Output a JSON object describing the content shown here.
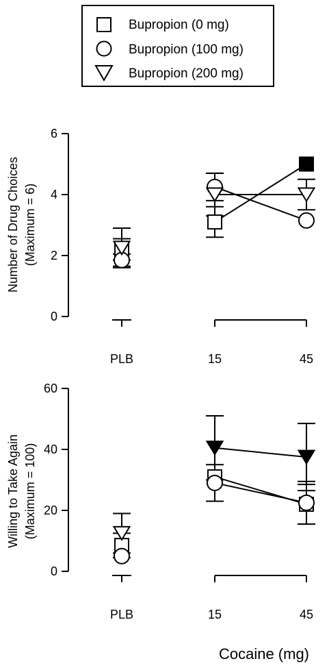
{
  "legend": {
    "entries": [
      {
        "label": "Bupropion (0 mg)",
        "marker": "square"
      },
      {
        "label": "Bupropion (100 mg)",
        "marker": "circle"
      },
      {
        "label": "Bupropion (200 mg)",
        "marker": "triangle-down"
      }
    ]
  },
  "xlabel": "Cocaine (mg)",
  "chart_data": [
    {
      "type": "scatter",
      "ylabel": "Number of Drug Choices",
      "ylabel_sub": "(Maximum = 6)",
      "ylim": [
        0,
        6
      ],
      "yticks": [
        0,
        2,
        4,
        6
      ],
      "categories": [
        "PLB",
        "15",
        "45"
      ],
      "series": [
        {
          "name": "Bupropion (0 mg)",
          "marker": "square",
          "values": [
            2.2,
            3.1,
            5.0
          ],
          "errors": [
            0.35,
            0.5,
            0.0
          ],
          "filled": [
            false,
            false,
            true
          ],
          "connect": [
            1,
            2
          ]
        },
        {
          "name": "Bupropion (100 mg)",
          "marker": "circle",
          "values": [
            1.85,
            4.25,
            3.15
          ],
          "errors": [
            0.2,
            0.45,
            0.0
          ],
          "filled": [
            false,
            false,
            false
          ],
          "connect": [
            1,
            2
          ]
        },
        {
          "name": "Bupropion (200 mg)",
          "marker": "triangle-down",
          "values": [
            2.25,
            4.0,
            4.0
          ],
          "errors": [
            0.65,
            0.7,
            0.5
          ],
          "filled": [
            false,
            false,
            false
          ],
          "connect": [
            1,
            2
          ]
        }
      ]
    },
    {
      "type": "scatter",
      "ylabel": "Willing to Take Again",
      "ylabel_sub": "(Maximum = 100)",
      "ylim": [
        0,
        60
      ],
      "yticks": [
        0,
        20,
        40,
        60
      ],
      "categories": [
        "PLB",
        "15",
        "45"
      ],
      "series": [
        {
          "name": "Bupropion (0 mg)",
          "marker": "square",
          "values": [
            8.5,
            31.0,
            22.0
          ],
          "errors": [
            4.0,
            0.0,
            6.5
          ],
          "filled": [
            false,
            false,
            false
          ],
          "connect": [
            1,
            2
          ]
        },
        {
          "name": "Bupropion (100 mg)",
          "marker": "circle",
          "values": [
            5.0,
            29.0,
            22.5
          ],
          "errors": [
            0.0,
            6.0,
            7.0
          ],
          "filled": [
            false,
            false,
            false
          ],
          "connect": [
            1,
            2
          ]
        },
        {
          "name": "Bupropion (200 mg)",
          "marker": "triangle-down",
          "values": [
            12.5,
            40.5,
            37.5
          ],
          "errors": [
            6.5,
            10.5,
            11.0
          ],
          "filled": [
            false,
            true,
            true
          ],
          "connect": [
            1,
            2
          ]
        }
      ]
    }
  ]
}
